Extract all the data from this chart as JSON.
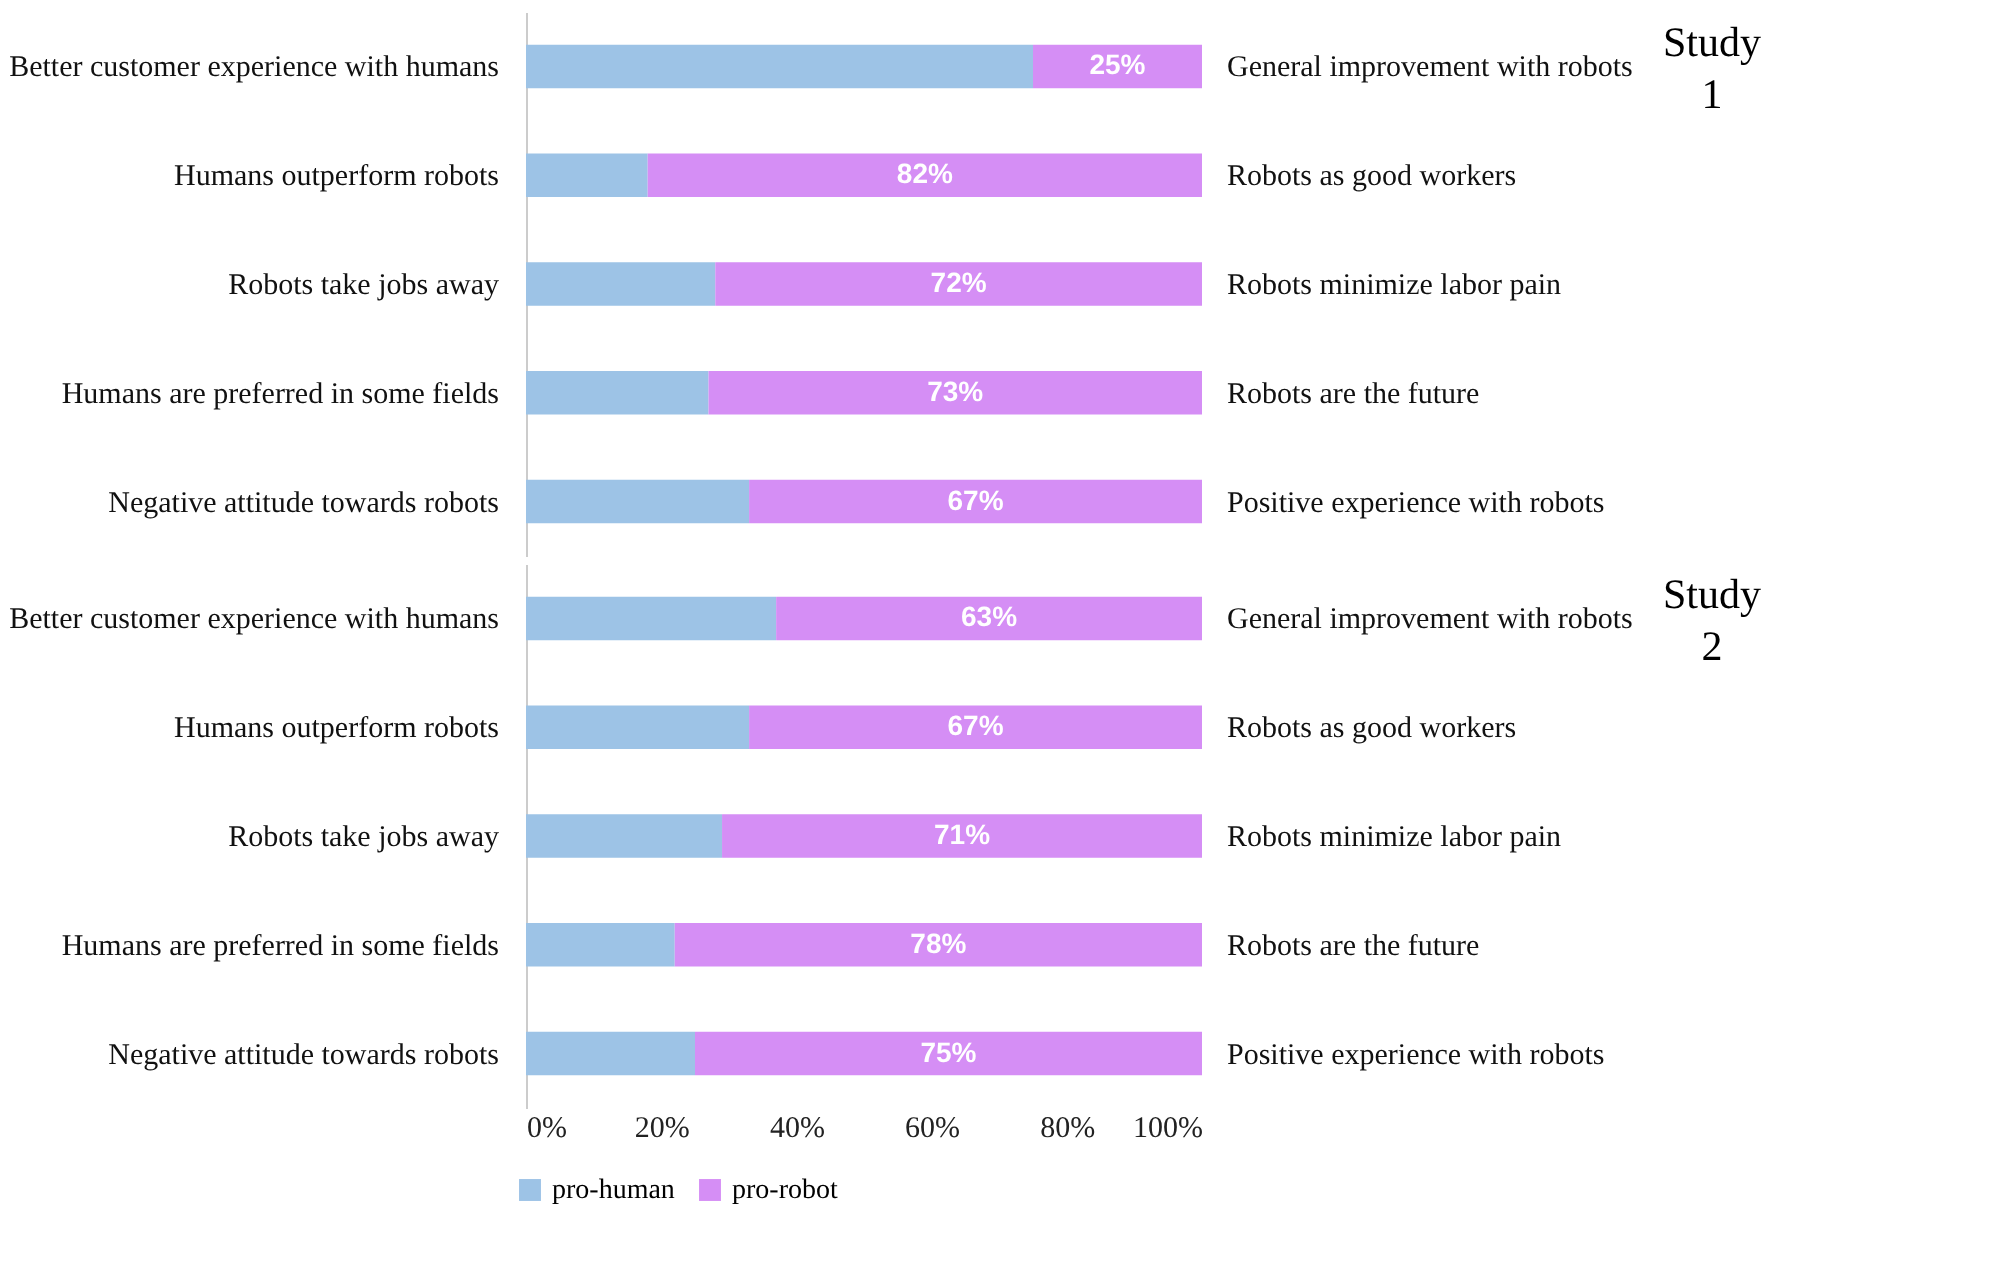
{
  "chart_data": [
    {
      "type": "bar",
      "orientation": "horizontal",
      "stacked": true,
      "categories": [
        "Better customer experience with humans",
        "Humans outperform robots",
        "Robots take jobs away",
        "Humans are preferred in some fields",
        "Negative attitude towards robots"
      ],
      "y2_categories": [
        "General improvement with robots",
        "Robots as good workers",
        "Robots minimize labor pain",
        "Robots are the future",
        "Positive experience with robots"
      ],
      "series": [
        {
          "color": "#9dc3e6",
          "values": [
            75,
            18,
            28,
            27,
            33
          ]
        },
        {
          "color": "#d58ef5",
          "values": [
            25,
            82,
            72,
            73,
            67
          ],
          "value_labels": [
            "25%",
            "82%",
            "72%",
            "73%",
            "67%"
          ]
        }
      ],
      "xlim": [
        0,
        100
      ],
      "tick_labels": "y",
      "grid": false,
      "legend": false,
      "annotations": [
        "Study 1"
      ]
    },
    {
      "type": "bar",
      "orientation": "horizontal",
      "stacked": true,
      "categories": [
        "Better customer experience with humans",
        "Humans outperform robots",
        "Robots take jobs away",
        "Humans are preferred in some fields",
        "Negative attitude towards robots"
      ],
      "y2_categories": [
        "General improvement with robots",
        "Robots as good workers",
        "Robots minimize labor pain",
        "Robots are the future",
        "Positive experience with robots"
      ],
      "series": [
        {
          "name": "pro-human",
          "color": "#9dc3e6",
          "values": [
            37,
            33,
            29,
            22,
            25
          ]
        },
        {
          "name": "pro-robot",
          "color": "#d58ef5",
          "values": [
            63,
            67,
            71,
            78,
            75
          ],
          "value_labels": [
            "63%",
            "67%",
            "71%",
            "78%",
            "75%"
          ]
        }
      ],
      "xlim": [
        0,
        100
      ],
      "xticks": [
        {
          "value": 0,
          "label": "0%"
        },
        {
          "value": 20,
          "label": "20%"
        },
        {
          "value": 40,
          "label": "40%"
        },
        {
          "value": 60,
          "label": "60%"
        },
        {
          "value": 80,
          "label": "80%"
        },
        {
          "value": 100,
          "label": "100%"
        }
      ],
      "grid": false,
      "legend": "bottom left",
      "annotations": [
        "Study 2"
      ]
    }
  ]
}
